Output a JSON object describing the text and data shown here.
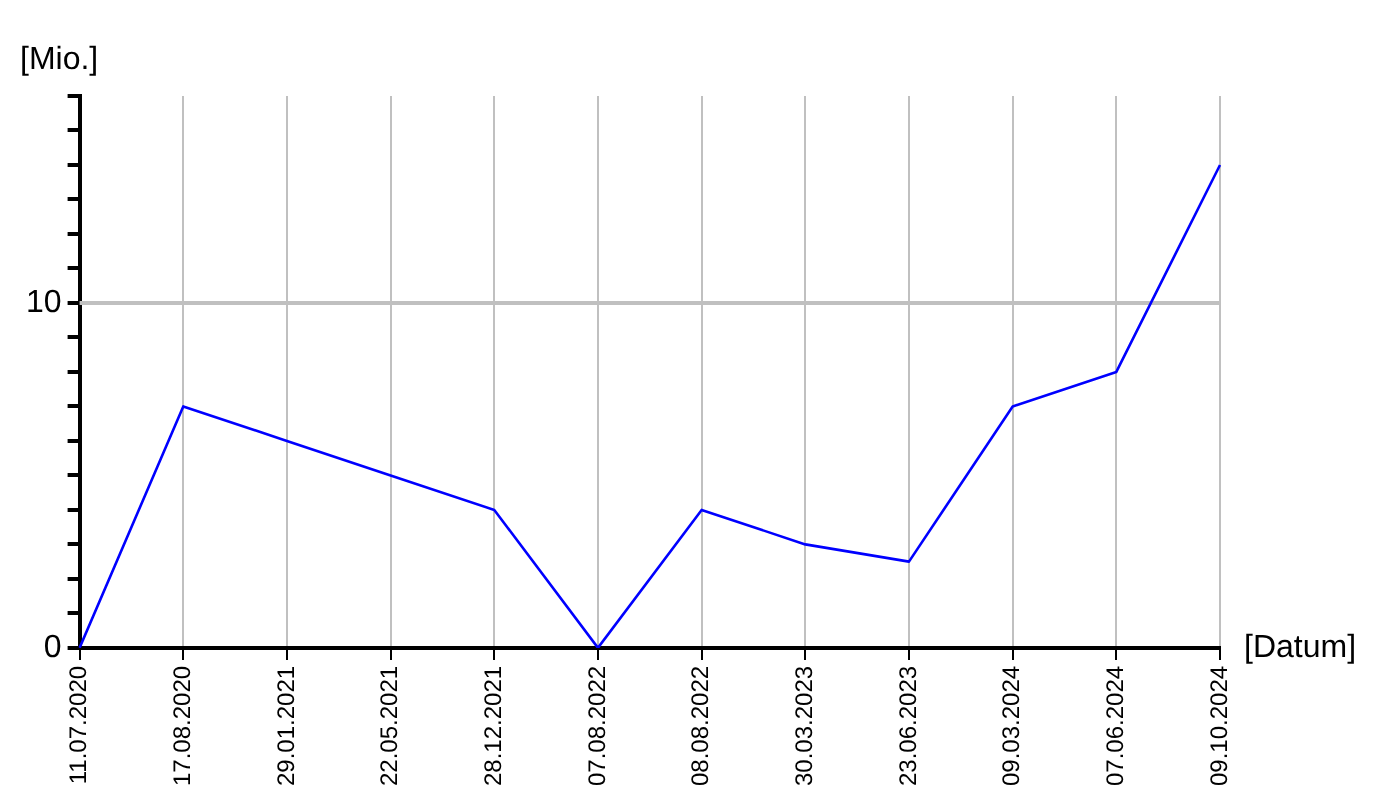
{
  "chart_data": {
    "type": "line",
    "xlabel": "[Datum]",
    "ylabel": "[Mio.]",
    "categories": [
      "11.07.2020",
      "17.08.2020",
      "29.01.2021",
      "22.05.2021",
      "28.12.2021",
      "07.08.2022",
      "08.08.2022",
      "30.03.2023",
      "23.06.2023",
      "09.03.2024",
      "07.06.2024",
      "09.10.2024"
    ],
    "series": [
      {
        "color": "#0000ff",
        "values": [
          0,
          7,
          6,
          5,
          4,
          0,
          4,
          3,
          2.5,
          7,
          8,
          14
        ]
      }
    ],
    "ylim": [
      0,
      16
    ],
    "yticks": [
      0,
      {
        "value": 1,
        "label": null
      },
      {
        "value": 2,
        "label": null
      },
      {
        "value": 3,
        "label": null
      },
      {
        "value": 4,
        "label": null
      },
      {
        "value": 5,
        "label": null
      },
      {
        "value": 6,
        "label": null
      },
      {
        "value": 7,
        "label": null
      },
      {
        "value": 8,
        "label": null
      },
      {
        "value": 9,
        "label": null
      },
      10,
      {
        "value": 11,
        "label": null
      },
      {
        "value": 12,
        "label": null
      },
      {
        "value": 13,
        "label": null
      },
      {
        "value": 14,
        "label": null
      },
      {
        "value": 15,
        "label": null
      },
      {
        "value": 16,
        "label": null
      }
    ],
    "grid": "x",
    "ref_lines": [
      {
        "axis": "y",
        "value": 10,
        "color": "#c0c0c0"
      }
    ],
    "legend": false,
    "marker": "none",
    "line_style": "solid"
  }
}
